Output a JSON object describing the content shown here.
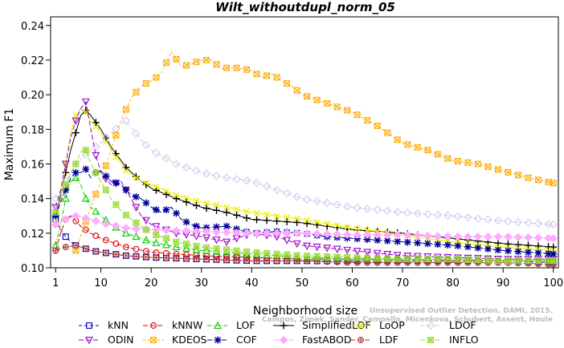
{
  "chart_data": {
    "type": "line",
    "title": "Wilt_withoutdupl_norm_05",
    "xlabel": "Neighborhood size",
    "ylabel": "Maximum F1",
    "xlim": [
      0,
      101
    ],
    "ylim": [
      0.1,
      0.245
    ],
    "xticks": [
      1,
      10,
      20,
      30,
      40,
      50,
      60,
      70,
      80,
      90,
      100
    ],
    "yticks": [
      0.1,
      0.12,
      0.14,
      0.16,
      0.18,
      0.2,
      0.22,
      0.24
    ],
    "ytick_labels": [
      "0.10",
      "0.12",
      "0.14",
      "0.16",
      "0.18",
      "0.20",
      "0.22",
      "0.24"
    ],
    "grid": false,
    "legend_position": "bottom",
    "watermark": "Campos, Zimek, Sander, Campello, Micenkova, Schubert, Assent, Houle",
    "watermark2": "Unsupervised Outlier Detection. DAMI, 2015.",
    "series": [
      {
        "name": "kNN",
        "color": "#0000cc",
        "marker": "square",
        "dash": "4,3",
        "points": [
          [
            1,
            0.128
          ],
          [
            2,
            0.122
          ],
          [
            3,
            0.118
          ],
          [
            4,
            0.115
          ],
          [
            5,
            0.113
          ],
          [
            6,
            0.112
          ],
          [
            8,
            0.11
          ],
          [
            10,
            0.109
          ],
          [
            15,
            0.107
          ],
          [
            20,
            0.106
          ],
          [
            30,
            0.105
          ],
          [
            40,
            0.104
          ],
          [
            50,
            0.104
          ],
          [
            60,
            0.104
          ],
          [
            70,
            0.104
          ],
          [
            80,
            0.104
          ],
          [
            90,
            0.104
          ],
          [
            100,
            0.103
          ]
        ]
      },
      {
        "name": "kNNW",
        "color": "#dd0000",
        "marker": "circle",
        "dash": "6,3",
        "points": [
          [
            1,
            0.11
          ],
          [
            2,
            0.12
          ],
          [
            3,
            0.128
          ],
          [
            4,
            0.13
          ],
          [
            5,
            0.127
          ],
          [
            6,
            0.124
          ],
          [
            8,
            0.12
          ],
          [
            10,
            0.117
          ],
          [
            15,
            0.112
          ],
          [
            20,
            0.109
          ],
          [
            30,
            0.107
          ],
          [
            40,
            0.106
          ],
          [
            50,
            0.105
          ],
          [
            60,
            0.105
          ],
          [
            70,
            0.105
          ],
          [
            80,
            0.104
          ],
          [
            90,
            0.104
          ],
          [
            100,
            0.104
          ]
        ]
      },
      {
        "name": "LOF",
        "color": "#00cc00",
        "marker": "triangle-up",
        "dash": "5,2,1,2",
        "points": [
          [
            1,
            0.113
          ],
          [
            2,
            0.125
          ],
          [
            3,
            0.14
          ],
          [
            4,
            0.15
          ],
          [
            5,
            0.152
          ],
          [
            6,
            0.148
          ],
          [
            7,
            0.14
          ],
          [
            8,
            0.135
          ],
          [
            10,
            0.13
          ],
          [
            12,
            0.125
          ],
          [
            15,
            0.12
          ],
          [
            20,
            0.115
          ],
          [
            25,
            0.112
          ],
          [
            30,
            0.11
          ],
          [
            40,
            0.108
          ],
          [
            50,
            0.106
          ],
          [
            60,
            0.105
          ],
          [
            70,
            0.105
          ],
          [
            80,
            0.105
          ],
          [
            90,
            0.104
          ],
          [
            100,
            0.104
          ]
        ]
      },
      {
        "name": "SimplifiedLOF",
        "color": "#000000",
        "marker": "plus",
        "dash": "",
        "points": [
          [
            1,
            0.13
          ],
          [
            2,
            0.142
          ],
          [
            3,
            0.155
          ],
          [
            4,
            0.168
          ],
          [
            5,
            0.178
          ],
          [
            6,
            0.188
          ],
          [
            7,
            0.191
          ],
          [
            8,
            0.188
          ],
          [
            10,
            0.18
          ],
          [
            12,
            0.17
          ],
          [
            15,
            0.158
          ],
          [
            18,
            0.15
          ],
          [
            20,
            0.146
          ],
          [
            25,
            0.14
          ],
          [
            30,
            0.135
          ],
          [
            35,
            0.132
          ],
          [
            40,
            0.128
          ],
          [
            50,
            0.126
          ],
          [
            60,
            0.122
          ],
          [
            70,
            0.12
          ],
          [
            80,
            0.117
          ],
          [
            90,
            0.114
          ],
          [
            100,
            0.112
          ]
        ]
      },
      {
        "name": "LoOP",
        "color": "#eeee00",
        "marker": "cross",
        "dash": "",
        "points": [
          [
            1,
            0.125
          ],
          [
            2,
            0.14
          ],
          [
            3,
            0.16
          ],
          [
            4,
            0.178
          ],
          [
            5,
            0.188
          ],
          [
            6,
            0.192
          ],
          [
            7,
            0.19
          ],
          [
            8,
            0.185
          ],
          [
            10,
            0.178
          ],
          [
            12,
            0.168
          ],
          [
            15,
            0.156
          ],
          [
            18,
            0.15
          ],
          [
            20,
            0.148
          ],
          [
            25,
            0.142
          ],
          [
            30,
            0.138
          ],
          [
            40,
            0.132
          ],
          [
            50,
            0.128
          ],
          [
            60,
            0.123
          ],
          [
            70,
            0.119
          ],
          [
            80,
            0.115
          ],
          [
            90,
            0.112
          ],
          [
            100,
            0.11
          ]
        ]
      },
      {
        "name": "LDOF",
        "color": "#ccccee",
        "marker": "diamond",
        "dash": "6,3",
        "points": [
          [
            1,
            0.14
          ],
          [
            3,
            0.15
          ],
          [
            5,
            0.16
          ],
          [
            8,
            0.168
          ],
          [
            10,
            0.172
          ],
          [
            12,
            0.178
          ],
          [
            15,
            0.185
          ],
          [
            18,
            0.174
          ],
          [
            20,
            0.168
          ],
          [
            25,
            0.16
          ],
          [
            30,
            0.155
          ],
          [
            35,
            0.152
          ],
          [
            40,
            0.15
          ],
          [
            45,
            0.145
          ],
          [
            50,
            0.14
          ],
          [
            60,
            0.135
          ],
          [
            70,
            0.132
          ],
          [
            80,
            0.13
          ],
          [
            90,
            0.127
          ],
          [
            100,
            0.125
          ]
        ]
      },
      {
        "name": "ODIN",
        "color": "#9900cc",
        "marker": "triangle-down",
        "dash": "6,3",
        "points": [
          [
            1,
            0.135
          ],
          [
            2,
            0.145
          ],
          [
            3,
            0.16
          ],
          [
            4,
            0.175
          ],
          [
            5,
            0.185
          ],
          [
            6,
            0.192
          ],
          [
            7,
            0.196
          ],
          [
            8,
            0.18
          ],
          [
            9,
            0.165
          ],
          [
            10,
            0.155
          ],
          [
            12,
            0.148
          ],
          [
            14,
            0.15
          ],
          [
            16,
            0.14
          ],
          [
            18,
            0.13
          ],
          [
            20,
            0.125
          ],
          [
            25,
            0.12
          ],
          [
            30,
            0.118
          ],
          [
            35,
            0.115
          ],
          [
            40,
            0.12
          ],
          [
            45,
            0.118
          ],
          [
            50,
            0.113
          ],
          [
            60,
            0.11
          ],
          [
            70,
            0.107
          ],
          [
            80,
            0.106
          ],
          [
            90,
            0.105
          ],
          [
            100,
            0.105
          ]
        ]
      },
      {
        "name": "KDEOS",
        "color": "#ffaa00",
        "marker": "square-x",
        "dash": "3,3",
        "points": [
          [
            5,
            0.11
          ],
          [
            8,
            0.135
          ],
          [
            10,
            0.15
          ],
          [
            12,
            0.168
          ],
          [
            14,
            0.185
          ],
          [
            16,
            0.198
          ],
          [
            18,
            0.205
          ],
          [
            20,
            0.208
          ],
          [
            22,
            0.212
          ],
          [
            24,
            0.225
          ],
          [
            26,
            0.216
          ],
          [
            28,
            0.218
          ],
          [
            30,
            0.22
          ],
          [
            32,
            0.22
          ],
          [
            34,
            0.215
          ],
          [
            36,
            0.216
          ],
          [
            38,
            0.215
          ],
          [
            40,
            0.214
          ],
          [
            42,
            0.21
          ],
          [
            44,
            0.212
          ],
          [
            46,
            0.208
          ],
          [
            48,
            0.205
          ],
          [
            50,
            0.2
          ],
          [
            55,
            0.195
          ],
          [
            60,
            0.19
          ],
          [
            65,
            0.182
          ],
          [
            70,
            0.172
          ],
          [
            75,
            0.168
          ],
          [
            80,
            0.162
          ],
          [
            85,
            0.16
          ],
          [
            90,
            0.156
          ],
          [
            95,
            0.152
          ],
          [
            100,
            0.149
          ]
        ]
      },
      {
        "name": "COF",
        "color": "#000099",
        "marker": "asterisk",
        "dash": "6,3",
        "points": [
          [
            1,
            0.13
          ],
          [
            2,
            0.138
          ],
          [
            3,
            0.145
          ],
          [
            4,
            0.152
          ],
          [
            5,
            0.155
          ],
          [
            6,
            0.155
          ],
          [
            7,
            0.157
          ],
          [
            8,
            0.152
          ],
          [
            9,
            0.155
          ],
          [
            10,
            0.156
          ],
          [
            12,
            0.15
          ],
          [
            14,
            0.148
          ],
          [
            16,
            0.142
          ],
          [
            18,
            0.14
          ],
          [
            20,
            0.135
          ],
          [
            22,
            0.132
          ],
          [
            24,
            0.135
          ],
          [
            26,
            0.128
          ],
          [
            28,
            0.125
          ],
          [
            30,
            0.123
          ],
          [
            35,
            0.124
          ],
          [
            40,
            0.12
          ],
          [
            45,
            0.121
          ],
          [
            50,
            0.12
          ],
          [
            55,
            0.118
          ],
          [
            60,
            0.117
          ],
          [
            70,
            0.115
          ],
          [
            80,
            0.113
          ],
          [
            90,
            0.11
          ],
          [
            100,
            0.108
          ]
        ]
      },
      {
        "name": "FastABOD",
        "color": "#ffaaff",
        "marker": "diamond-filled",
        "dash": "",
        "points": [
          [
            1,
            0.125
          ],
          [
            3,
            0.128
          ],
          [
            5,
            0.13
          ],
          [
            8,
            0.128
          ],
          [
            10,
            0.126
          ],
          [
            15,
            0.123
          ],
          [
            20,
            0.122
          ],
          [
            30,
            0.121
          ],
          [
            40,
            0.12
          ],
          [
            50,
            0.12
          ],
          [
            60,
            0.119
          ],
          [
            70,
            0.119
          ],
          [
            80,
            0.118
          ],
          [
            90,
            0.118
          ],
          [
            100,
            0.117
          ]
        ]
      },
      {
        "name": "LDF",
        "color": "#aa3333",
        "marker": "circle-plus",
        "dash": "6,3",
        "points": [
          [
            1,
            0.11
          ],
          [
            3,
            0.112
          ],
          [
            5,
            0.113
          ],
          [
            8,
            0.11
          ],
          [
            10,
            0.109
          ],
          [
            15,
            0.107
          ],
          [
            20,
            0.106
          ],
          [
            30,
            0.105
          ],
          [
            40,
            0.104
          ],
          [
            50,
            0.104
          ],
          [
            60,
            0.103
          ],
          [
            70,
            0.103
          ],
          [
            80,
            0.103
          ],
          [
            90,
            0.103
          ],
          [
            100,
            0.102
          ]
        ]
      },
      {
        "name": "INFLO",
        "color": "#99dd33",
        "marker": "square-star",
        "dash": "6,3",
        "points": [
          [
            1,
            0.132
          ],
          [
            2,
            0.14
          ],
          [
            3,
            0.148
          ],
          [
            4,
            0.155
          ],
          [
            5,
            0.16
          ],
          [
            6,
            0.167
          ],
          [
            7,
            0.168
          ],
          [
            8,
            0.16
          ],
          [
            10,
            0.15
          ],
          [
            12,
            0.14
          ],
          [
            14,
            0.133
          ],
          [
            16,
            0.128
          ],
          [
            18,
            0.124
          ],
          [
            20,
            0.12
          ],
          [
            25,
            0.115
          ],
          [
            30,
            0.112
          ],
          [
            40,
            0.109
          ],
          [
            50,
            0.107
          ],
          [
            60,
            0.106
          ],
          [
            70,
            0.105
          ],
          [
            80,
            0.105
          ],
          [
            90,
            0.104
          ],
          [
            100,
            0.104
          ]
        ]
      }
    ]
  }
}
